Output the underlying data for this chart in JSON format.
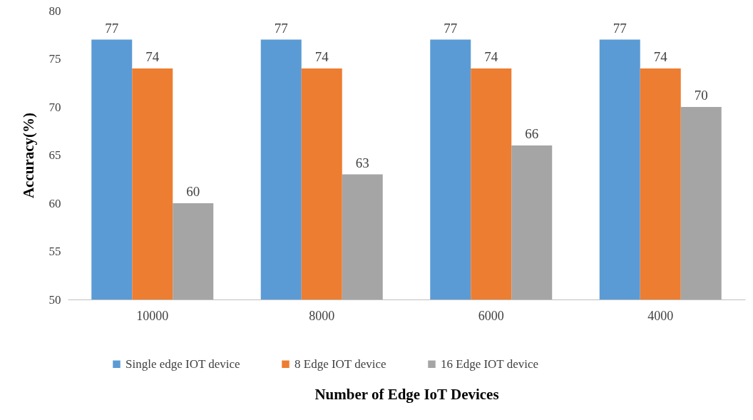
{
  "chart_data": {
    "type": "bar",
    "xlabel": "Number of Edge IoT Devices",
    "ylabel": "Accuracy(%)",
    "categories": [
      "10000",
      "8000",
      "6000",
      "4000"
    ],
    "series": [
      {
        "name": "Single edge IOT device",
        "color": "#5b9bd5",
        "values": [
          77,
          77,
          77,
          77
        ]
      },
      {
        "name": "8 Edge IOT device",
        "color": "#ed7d31",
        "values": [
          74,
          74,
          74,
          74
        ]
      },
      {
        "name": "16 Edge IOT device",
        "color": "#a5a5a5",
        "values": [
          60,
          63,
          66,
          70
        ]
      }
    ],
    "ylim": [
      50,
      80
    ],
    "yticks": [
      50,
      55,
      60,
      65,
      70,
      75,
      80
    ],
    "data_labels": true,
    "grid": false,
    "legend": "bottom"
  }
}
